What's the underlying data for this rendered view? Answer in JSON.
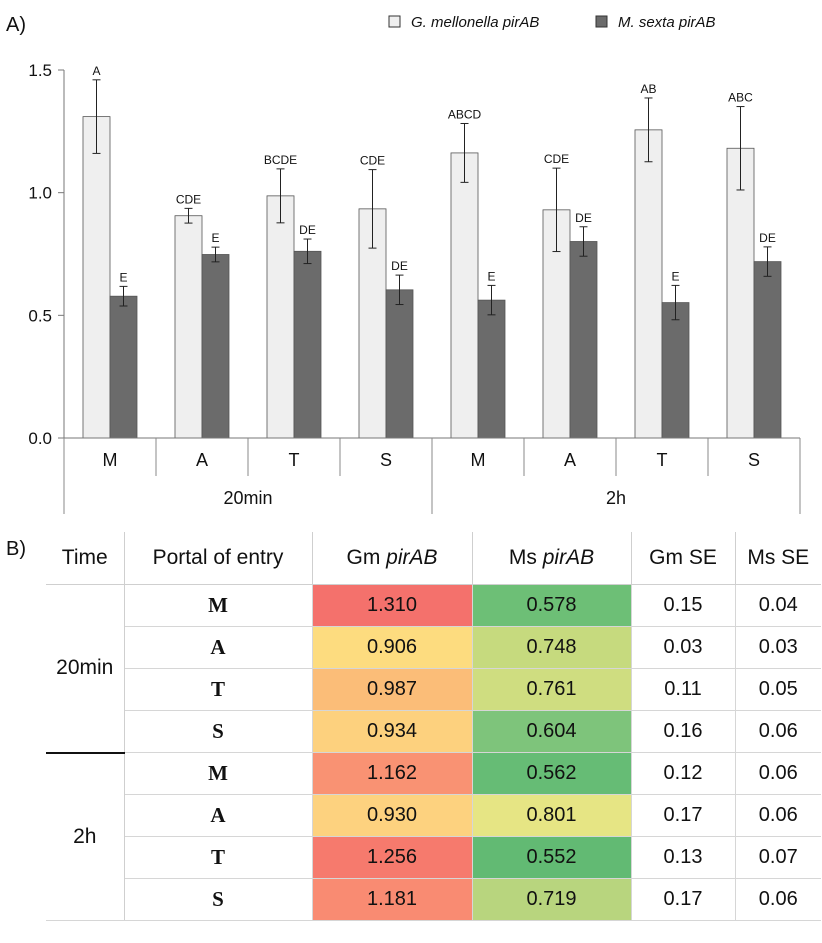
{
  "panel_a_label": "A)",
  "panel_b_label": "B)",
  "chart_data": {
    "type": "bar",
    "title": "",
    "xlabel": "",
    "ylabel": "",
    "ylim": [
      0,
      1.5
    ],
    "yticks": [
      "0.0",
      "0.5",
      "1.0",
      "1.5"
    ],
    "grid": false,
    "legend_position": "top-right",
    "groups": [
      {
        "label": "20min",
        "categories": [
          "M",
          "A",
          "T",
          "S"
        ]
      },
      {
        "label": "2h",
        "categories": [
          "M",
          "A",
          "T",
          "S"
        ]
      }
    ],
    "series": [
      {
        "name": "G. mellonella pirAB",
        "color": "#efefef",
        "values": [
          1.31,
          0.906,
          0.987,
          0.934,
          1.162,
          0.93,
          1.256,
          1.181
        ],
        "errors": [
          0.15,
          0.03,
          0.11,
          0.16,
          0.12,
          0.17,
          0.13,
          0.17
        ],
        "letters": [
          "A",
          "CDE",
          "BCDE",
          "CDE",
          "ABCD",
          "CDE",
          "AB",
          "ABC"
        ]
      },
      {
        "name": "M. sexta pirAB",
        "color": "#6b6b6b",
        "values": [
          0.578,
          0.748,
          0.761,
          0.604,
          0.562,
          0.801,
          0.552,
          0.719
        ],
        "errors": [
          0.04,
          0.03,
          0.05,
          0.06,
          0.06,
          0.06,
          0.07,
          0.06
        ],
        "letters": [
          "E",
          "E",
          "DE",
          "DE",
          "E",
          "DE",
          "E",
          "DE"
        ]
      }
    ]
  },
  "table": {
    "headers": {
      "time": "Time",
      "portal": "Portal of entry",
      "gm_prefix": "Gm ",
      "gm_italic": "pirAB",
      "ms_prefix": "Ms ",
      "ms_italic": "pirAB",
      "gm_se": "Gm SE",
      "ms_se": "Ms SE"
    },
    "groups": [
      {
        "time": "20min",
        "rows": [
          {
            "portal": "M",
            "gm": "1.310",
            "ms": "0.578",
            "gm_se": "0.15",
            "ms_se": "0.04",
            "gm_color": "#f4716c",
            "ms_color": "#6dbf76"
          },
          {
            "portal": "A",
            "gm": "0.906",
            "ms": "0.748",
            "gm_se": "0.03",
            "ms_se": "0.03",
            "gm_color": "#fddc7f",
            "ms_color": "#c6da7e"
          },
          {
            "portal": "T",
            "gm": "0.987",
            "ms": "0.761",
            "gm_se": "0.11",
            "ms_se": "0.05",
            "gm_color": "#fbbd78",
            "ms_color": "#cfdd80"
          },
          {
            "portal": "S",
            "gm": "0.934",
            "ms": "0.604",
            "gm_se": "0.16",
            "ms_se": "0.06",
            "gm_color": "#fdd17e",
            "ms_color": "#7ec47b"
          }
        ]
      },
      {
        "time": "2h",
        "rows": [
          {
            "portal": "M",
            "gm": "1.162",
            "ms": "0.562",
            "gm_se": "0.12",
            "ms_se": "0.06",
            "gm_color": "#f99273",
            "ms_color": "#66bc75"
          },
          {
            "portal": "A",
            "gm": "0.930",
            "ms": "0.801",
            "gm_se": "0.17",
            "ms_se": "0.06",
            "gm_color": "#fdd27f",
            "ms_color": "#e6e584"
          },
          {
            "portal": "T",
            "gm": "1.256",
            "ms": "0.552",
            "gm_se": "0.13",
            "ms_se": "0.07",
            "gm_color": "#f67a6d",
            "ms_color": "#62ba73"
          },
          {
            "portal": "S",
            "gm": "1.181",
            "ms": "0.719",
            "gm_se": "0.17",
            "ms_se": "0.06",
            "gm_color": "#f98b72",
            "ms_color": "#b8d57e"
          }
        ]
      }
    ]
  }
}
